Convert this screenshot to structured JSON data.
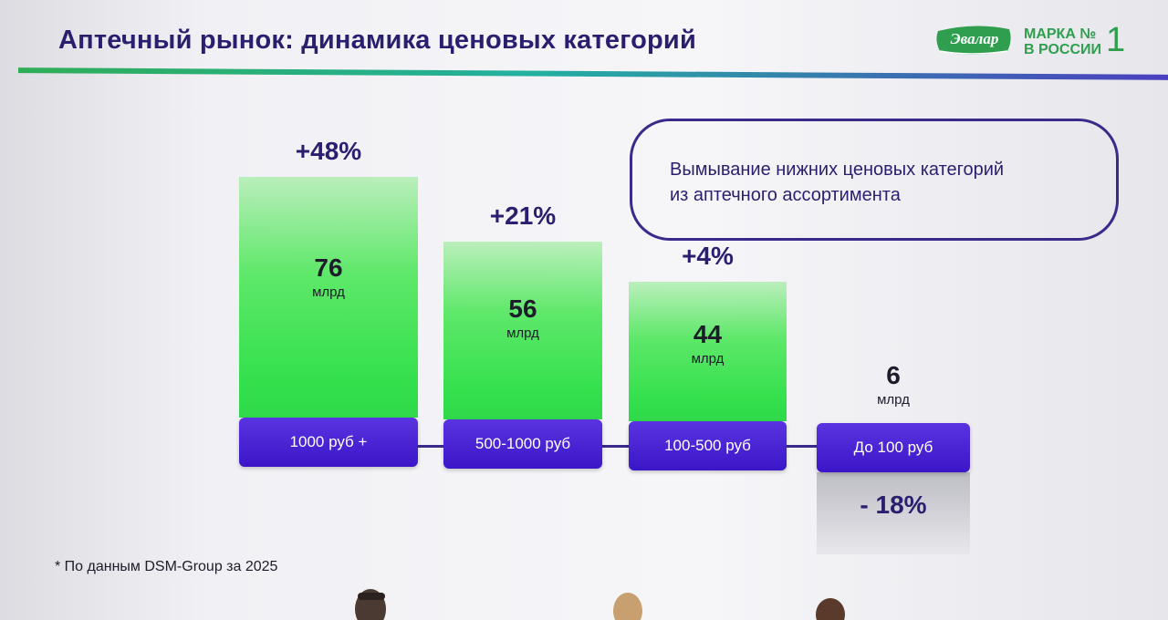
{
  "slide": {
    "title": "Аптечный рынок: динамика ценовых категорий",
    "brand": {
      "logo_text": "Эвалар",
      "line1": "МАРКА №",
      "line2": "В РОССИИ",
      "number": "1",
      "color": "#2f9e4e"
    },
    "callout": {
      "line1": "Вымывание нижних ценовых категорий",
      "line2": "из аптечного ассортимента"
    },
    "footnote": "* По данным DSM-Group за 2025",
    "colors": {
      "title": "#2a1f6e",
      "bar_green": "#33e04c",
      "pill_purple": "#3b16c8"
    }
  },
  "chart_data": {
    "type": "bar",
    "categories": [
      "1000 руб +",
      "500-1000 руб",
      "100-500 руб",
      "До 100 руб"
    ],
    "values": [
      76,
      56,
      44,
      6
    ],
    "unit": "млрд",
    "changes": [
      "+48%",
      "+21%",
      "+4%",
      "- 18%"
    ],
    "value_labels": [
      "76",
      "56",
      "44",
      "6"
    ],
    "grid": false
  }
}
